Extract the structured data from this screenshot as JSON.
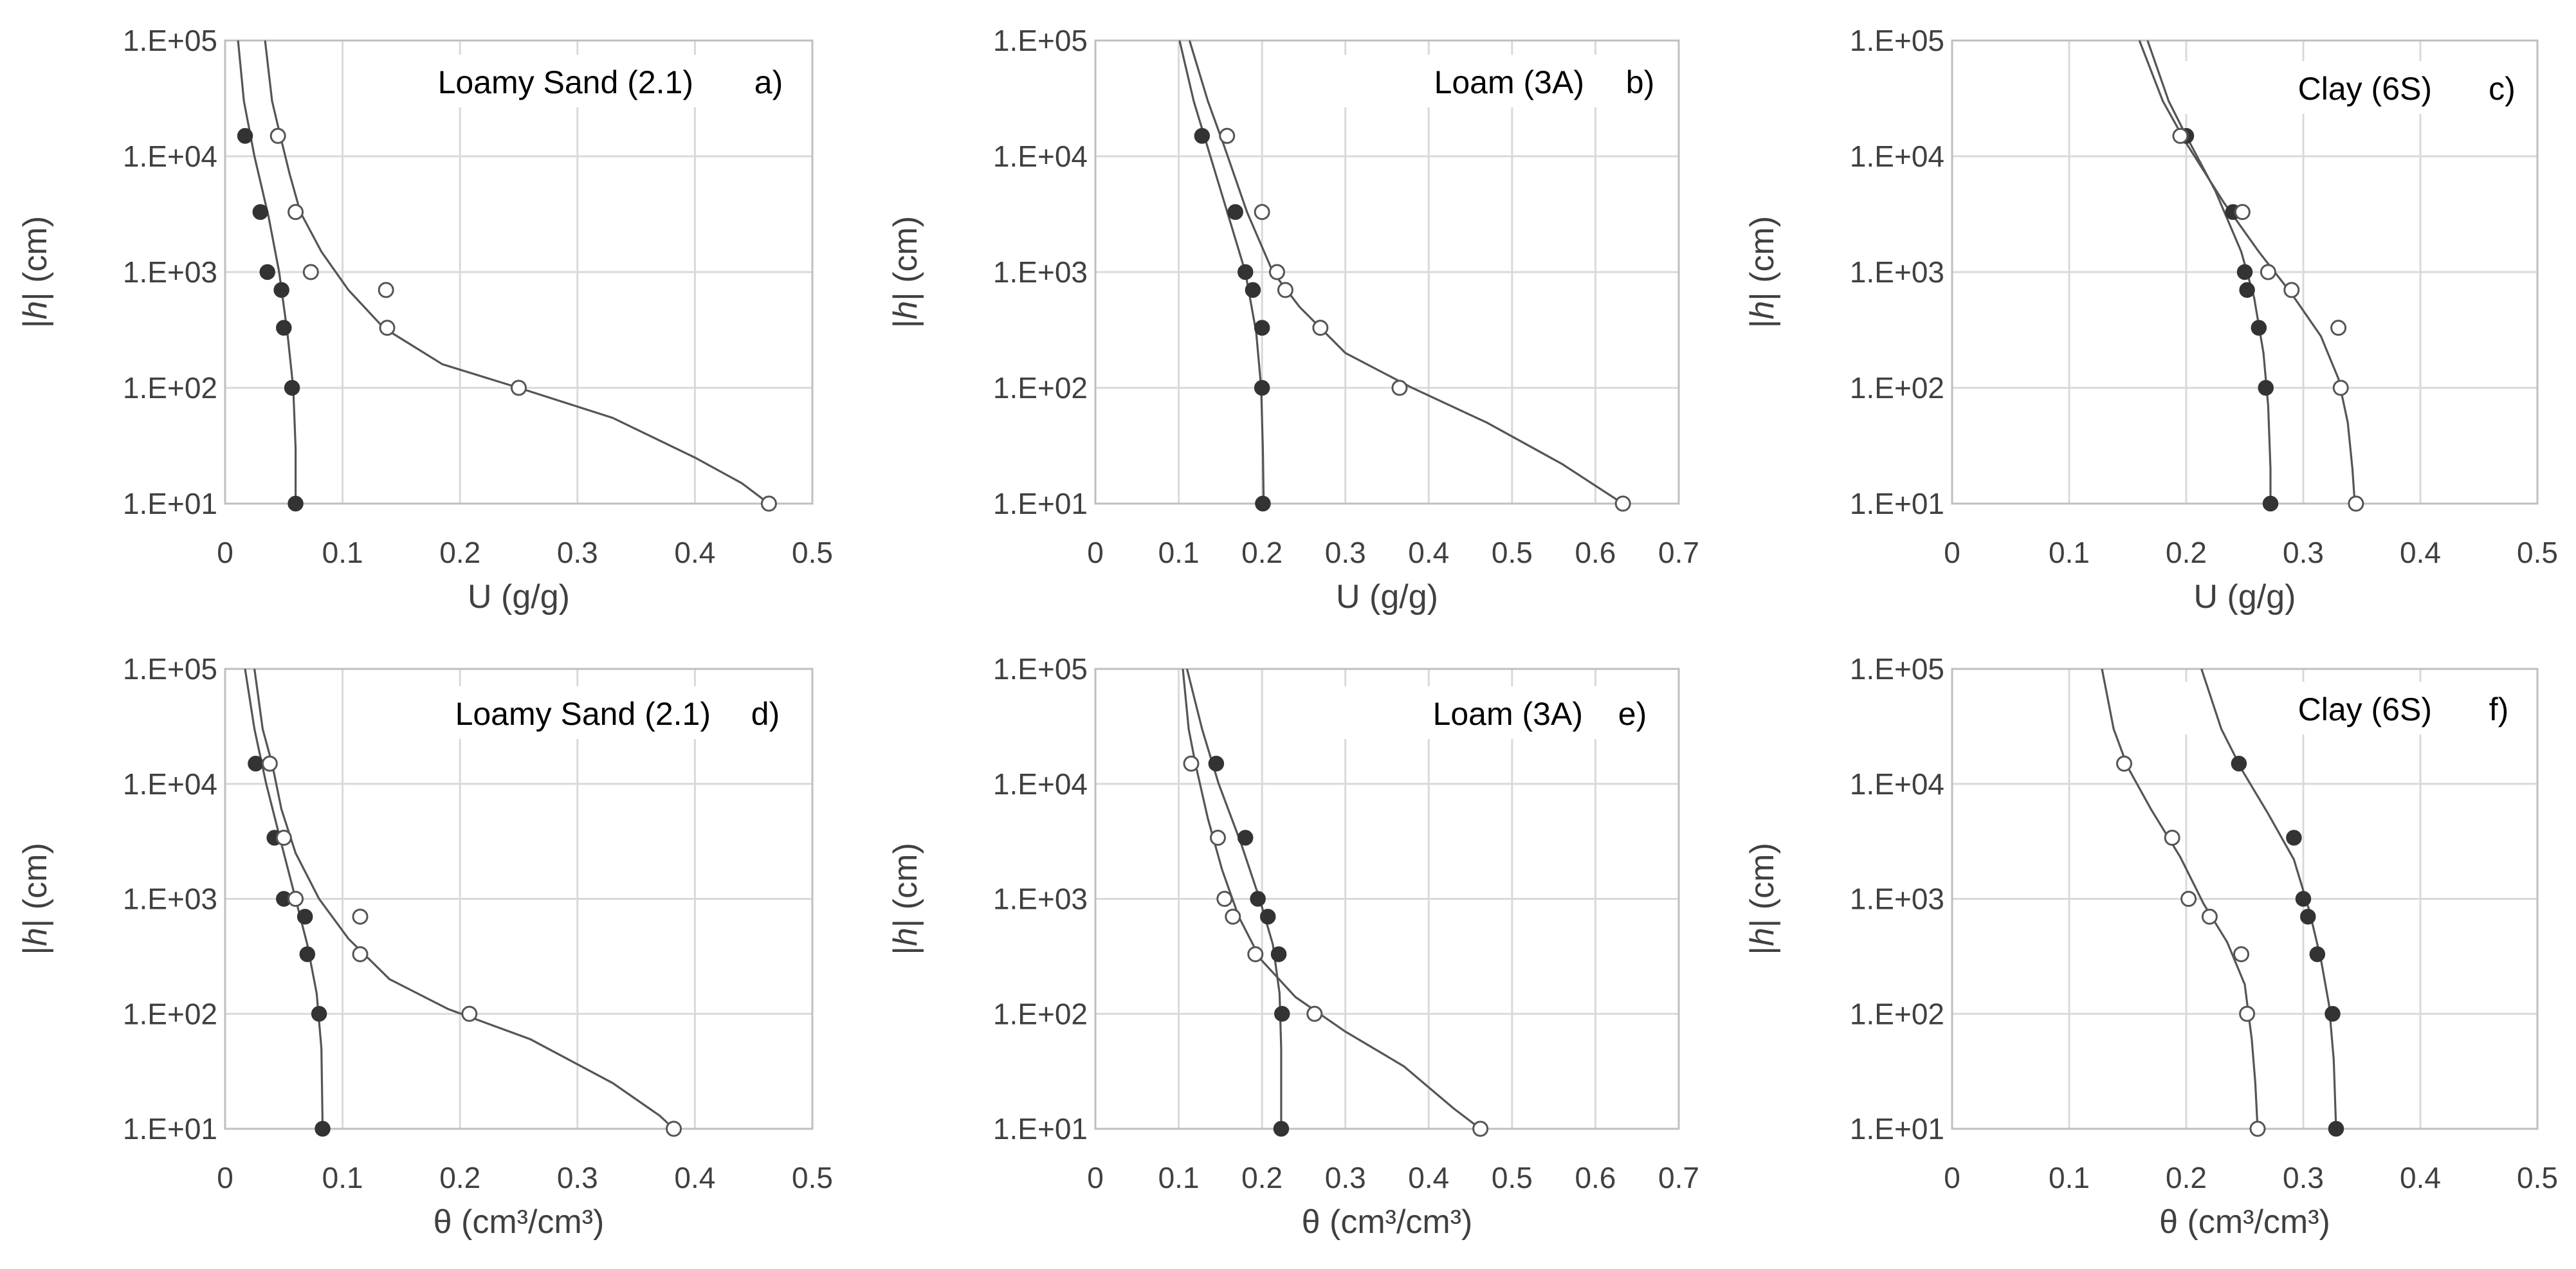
{
  "chart_data": [
    {
      "type": "scatter",
      "panel": "a)",
      "title": "Loamy Sand (2.1)",
      "xlabel": "U (g/g)",
      "ylabel": "|h| (cm)",
      "xlim": [
        0,
        0.5
      ],
      "xstep": 0.1,
      "yscale": "log",
      "ylim": [
        10,
        100000
      ],
      "xticks": [
        "0",
        "0.1",
        "0.2",
        "0.3",
        "0.4",
        "0.5"
      ],
      "yticks": [
        "1.E+01",
        "1.E+02",
        "1.E+03",
        "1.E+04",
        "1.E+05"
      ],
      "series": [
        {
          "style": "filled",
          "points": [
            [
              0.017,
              15000
            ],
            [
              0.03,
              3300
            ],
            [
              0.036,
              1000
            ],
            [
              0.048,
              700
            ],
            [
              0.05,
              330
            ],
            [
              0.057,
              100
            ],
            [
              0.06,
              10
            ]
          ],
          "curve": [
            [
              0.011,
              100000
            ],
            [
              0.016,
              30000
            ],
            [
              0.025,
              10000
            ],
            [
              0.037,
              3000
            ],
            [
              0.046,
              1000
            ],
            [
              0.053,
              300
            ],
            [
              0.058,
              100
            ],
            [
              0.06,
              30
            ],
            [
              0.06,
              10
            ]
          ]
        },
        {
          "style": "open",
          "points": [
            [
              0.045,
              15000
            ],
            [
              0.06,
              3300
            ],
            [
              0.073,
              1000
            ],
            [
              0.137,
              700
            ],
            [
              0.138,
              330
            ],
            [
              0.25,
              100
            ],
            [
              0.463,
              10
            ]
          ],
          "curve": [
            [
              0.034,
              100000
            ],
            [
              0.04,
              30000
            ],
            [
              0.047,
              15000
            ],
            [
              0.055,
              7000
            ],
            [
              0.064,
              3300
            ],
            [
              0.082,
              1500
            ],
            [
              0.105,
              700
            ],
            [
              0.135,
              330
            ],
            [
              0.185,
              160
            ],
            [
              0.25,
              100
            ],
            [
              0.33,
              55
            ],
            [
              0.4,
              25
            ],
            [
              0.44,
              15
            ],
            [
              0.463,
              10
            ]
          ]
        }
      ]
    },
    {
      "type": "scatter",
      "panel": "b)",
      "title": "Loam (3A)",
      "xlabel": "U (g/g)",
      "ylabel": "|h| (cm)",
      "xlim": [
        0,
        0.7
      ],
      "xstep": 0.1,
      "yscale": "log",
      "ylim": [
        10,
        100000
      ],
      "xticks": [
        "0",
        "0.1",
        "0.2",
        "0.3",
        "0.4",
        "0.5",
        "0.6",
        "0.7"
      ],
      "yticks": [
        "1.E+01",
        "1.E+02",
        "1.E+03",
        "1.E+04",
        "1.E+05"
      ],
      "series": [
        {
          "style": "filled",
          "points": [
            [
              0.128,
              15000
            ],
            [
              0.168,
              3300
            ],
            [
              0.18,
              1000
            ],
            [
              0.189,
              700
            ],
            [
              0.2,
              330
            ],
            [
              0.2,
              100
            ],
            [
              0.201,
              10
            ]
          ],
          "curve": [
            [
              0.101,
              100000
            ],
            [
              0.118,
              30000
            ],
            [
              0.138,
              10000
            ],
            [
              0.16,
              3000
            ],
            [
              0.18,
              1000
            ],
            [
              0.193,
              300
            ],
            [
              0.199,
              100
            ],
            [
              0.201,
              30
            ],
            [
              0.202,
              10
            ]
          ]
        },
        {
          "style": "open",
          "points": [
            [
              0.158,
              15000
            ],
            [
              0.2,
              3300
            ],
            [
              0.218,
              1000
            ],
            [
              0.228,
              700
            ],
            [
              0.27,
              330
            ],
            [
              0.365,
              100
            ],
            [
              0.633,
              10
            ]
          ],
          "curve": [
            [
              0.113,
              100000
            ],
            [
              0.135,
              30000
            ],
            [
              0.155,
              12000
            ],
            [
              0.182,
              3300
            ],
            [
              0.213,
              1000
            ],
            [
              0.245,
              500
            ],
            [
              0.3,
              200
            ],
            [
              0.38,
              100
            ],
            [
              0.47,
              50
            ],
            [
              0.56,
              22
            ],
            [
              0.633,
              10
            ]
          ]
        }
      ]
    },
    {
      "type": "scatter",
      "panel": "c)",
      "title": "Clay (6S)",
      "xlabel": "U (g/g)",
      "ylabel": "|h| (cm)",
      "xlim": [
        0,
        0.5
      ],
      "xstep": 0.1,
      "yscale": "log",
      "ylim": [
        10,
        100000
      ],
      "xticks": [
        "0",
        "0.1",
        "0.2",
        "0.3",
        "0.4",
        "0.5"
      ],
      "yticks": [
        "1.E+01",
        "1.E+02",
        "1.E+03",
        "1.E+04",
        "1.E+05"
      ],
      "series": [
        {
          "style": "filled",
          "points": [
            [
              0.2,
              15000
            ],
            [
              0.24,
              3300
            ],
            [
              0.25,
              1000
            ],
            [
              0.252,
              700
            ],
            [
              0.262,
              330
            ],
            [
              0.268,
              100
            ],
            [
              0.272,
              10
            ]
          ],
          "curve": [
            [
              0.167,
              100000
            ],
            [
              0.185,
              30000
            ],
            [
              0.2,
              15000
            ],
            [
              0.225,
              5000
            ],
            [
              0.247,
              1500
            ],
            [
              0.258,
              600
            ],
            [
              0.266,
              200
            ],
            [
              0.27,
              70
            ],
            [
              0.272,
              20
            ],
            [
              0.272,
              10
            ]
          ]
        },
        {
          "style": "open",
          "points": [
            [
              0.195,
              15000
            ],
            [
              0.248,
              3300
            ],
            [
              0.27,
              1000
            ],
            [
              0.29,
              700
            ],
            [
              0.33,
              330
            ],
            [
              0.332,
              100
            ],
            [
              0.345,
              10
            ]
          ],
          "curve": [
            [
              0.16,
              100000
            ],
            [
              0.18,
              30000
            ],
            [
              0.2,
              13000
            ],
            [
              0.232,
              4000
            ],
            [
              0.262,
              1500
            ],
            [
              0.29,
              650
            ],
            [
              0.315,
              280
            ],
            [
              0.33,
              120
            ],
            [
              0.338,
              50
            ],
            [
              0.342,
              20
            ],
            [
              0.344,
              10
            ]
          ]
        }
      ]
    },
    {
      "type": "scatter",
      "panel": "d)",
      "title": "Loamy Sand (2.1)",
      "xlabel": "θ (cm³/cm³)",
      "ylabel": "|h| (cm)",
      "xlim": [
        0,
        0.5
      ],
      "xstep": 0.1,
      "yscale": "log",
      "ylim": [
        10,
        100000
      ],
      "xticks": [
        "0",
        "0.1",
        "0.2",
        "0.3",
        "0.4",
        "0.5"
      ],
      "yticks": [
        "1.E+01",
        "1.E+02",
        "1.E+03",
        "1.E+04",
        "1.E+05"
      ],
      "series": [
        {
          "style": "filled",
          "points": [
            [
              0.026,
              15000
            ],
            [
              0.042,
              3400
            ],
            [
              0.05,
              1000
            ],
            [
              0.068,
              700
            ],
            [
              0.07,
              330
            ],
            [
              0.08,
              100
            ],
            [
              0.083,
              10
            ]
          ],
          "curve": [
            [
              0.017,
              100000
            ],
            [
              0.025,
              30000
            ],
            [
              0.035,
              10000
            ],
            [
              0.048,
              3000
            ],
            [
              0.06,
              1000
            ],
            [
              0.07,
              400
            ],
            [
              0.078,
              150
            ],
            [
              0.082,
              50
            ],
            [
              0.083,
              10
            ]
          ]
        },
        {
          "style": "open",
          "points": [
            [
              0.038,
              15000
            ],
            [
              0.05,
              3400
            ],
            [
              0.06,
              1000
            ],
            [
              0.115,
              700
            ],
            [
              0.115,
              330
            ],
            [
              0.208,
              100
            ],
            [
              0.382,
              10
            ]
          ],
          "curve": [
            [
              0.025,
              100000
            ],
            [
              0.032,
              30000
            ],
            [
              0.04,
              15000
            ],
            [
              0.048,
              6000
            ],
            [
              0.06,
              2500
            ],
            [
              0.08,
              1000
            ],
            [
              0.105,
              450
            ],
            [
              0.14,
              200
            ],
            [
              0.19,
              110
            ],
            [
              0.26,
              60
            ],
            [
              0.33,
              25
            ],
            [
              0.37,
              13
            ],
            [
              0.382,
              10
            ]
          ]
        }
      ]
    },
    {
      "type": "scatter",
      "panel": "e)",
      "title": "Loam (3A)",
      "xlabel": "θ (cm³/cm³)",
      "ylabel": "|h| (cm)",
      "xlim": [
        0,
        0.7
      ],
      "xstep": 0.1,
      "yscale": "log",
      "ylim": [
        10,
        100000
      ],
      "xticks": [
        "0",
        "0.1",
        "0.2",
        "0.3",
        "0.4",
        "0.5",
        "0.6",
        "0.7"
      ],
      "yticks": [
        "1.E+01",
        "1.E+02",
        "1.E+03",
        "1.E+04",
        "1.E+05"
      ],
      "series": [
        {
          "style": "filled",
          "points": [
            [
              0.145,
              15000
            ],
            [
              0.18,
              3400
            ],
            [
              0.195,
              1000
            ],
            [
              0.207,
              700
            ],
            [
              0.22,
              330
            ],
            [
              0.224,
              100
            ],
            [
              0.223,
              10
            ]
          ],
          "curve": [
            [
              0.11,
              100000
            ],
            [
              0.128,
              30000
            ],
            [
              0.148,
              10000
            ],
            [
              0.175,
              3000
            ],
            [
              0.197,
              1000
            ],
            [
              0.213,
              400
            ],
            [
              0.221,
              150
            ],
            [
              0.223,
              50
            ],
            [
              0.223,
              10
            ]
          ]
        },
        {
          "style": "open",
          "points": [
            [
              0.115,
              15000
            ],
            [
              0.147,
              3400
            ],
            [
              0.155,
              1000
            ],
            [
              0.165,
              700
            ],
            [
              0.192,
              330
            ],
            [
              0.263,
              100
            ],
            [
              0.462,
              10
            ]
          ],
          "curve": [
            [
              0.105,
              100000
            ],
            [
              0.112,
              30000
            ],
            [
              0.12,
              15000
            ],
            [
              0.135,
              5000
            ],
            [
              0.152,
              1800
            ],
            [
              0.172,
              700
            ],
            [
              0.198,
              300
            ],
            [
              0.24,
              140
            ],
            [
              0.3,
              70
            ],
            [
              0.37,
              35
            ],
            [
              0.43,
              15
            ],
            [
              0.462,
              10
            ]
          ]
        }
      ]
    },
    {
      "type": "scatter",
      "panel": "f)",
      "title": "Clay (6S)",
      "xlabel": "θ (cm³/cm³)",
      "ylabel": "|h| (cm)",
      "xlim": [
        0,
        0.5
      ],
      "xstep": 0.1,
      "yscale": "log",
      "ylim": [
        10,
        100000
      ],
      "xticks": [
        "0",
        "0.1",
        "0.2",
        "0.3",
        "0.4",
        "0.5"
      ],
      "yticks": [
        "1.E+01",
        "1.E+02",
        "1.E+03",
        "1.E+04",
        "1.E+05"
      ],
      "series": [
        {
          "style": "filled",
          "points": [
            [
              0.245,
              15000
            ],
            [
              0.292,
              3400
            ],
            [
              0.3,
              1000
            ],
            [
              0.304,
              700
            ],
            [
              0.312,
              330
            ],
            [
              0.325,
              100
            ],
            [
              0.328,
              10
            ]
          ],
          "curve": [
            [
              0.213,
              100000
            ],
            [
              0.23,
              30000
            ],
            [
              0.248,
              13000
            ],
            [
              0.27,
              5500
            ],
            [
              0.292,
              2200
            ],
            [
              0.305,
              800
            ],
            [
              0.315,
              300
            ],
            [
              0.322,
              120
            ],
            [
              0.326,
              40
            ],
            [
              0.328,
              10
            ]
          ]
        },
        {
          "style": "open",
          "points": [
            [
              0.147,
              15000
            ],
            [
              0.188,
              3400
            ],
            [
              0.202,
              1000
            ],
            [
              0.22,
              700
            ],
            [
              0.247,
              330
            ],
            [
              0.252,
              100
            ],
            [
              0.261,
              10
            ]
          ],
          "curve": [
            [
              0.128,
              100000
            ],
            [
              0.138,
              30000
            ],
            [
              0.15,
              14000
            ],
            [
              0.17,
              6000
            ],
            [
              0.195,
              2300
            ],
            [
              0.215,
              900
            ],
            [
              0.235,
              420
            ],
            [
              0.25,
              180
            ],
            [
              0.256,
              60
            ],
            [
              0.259,
              25
            ],
            [
              0.261,
              10
            ]
          ]
        }
      ]
    }
  ]
}
